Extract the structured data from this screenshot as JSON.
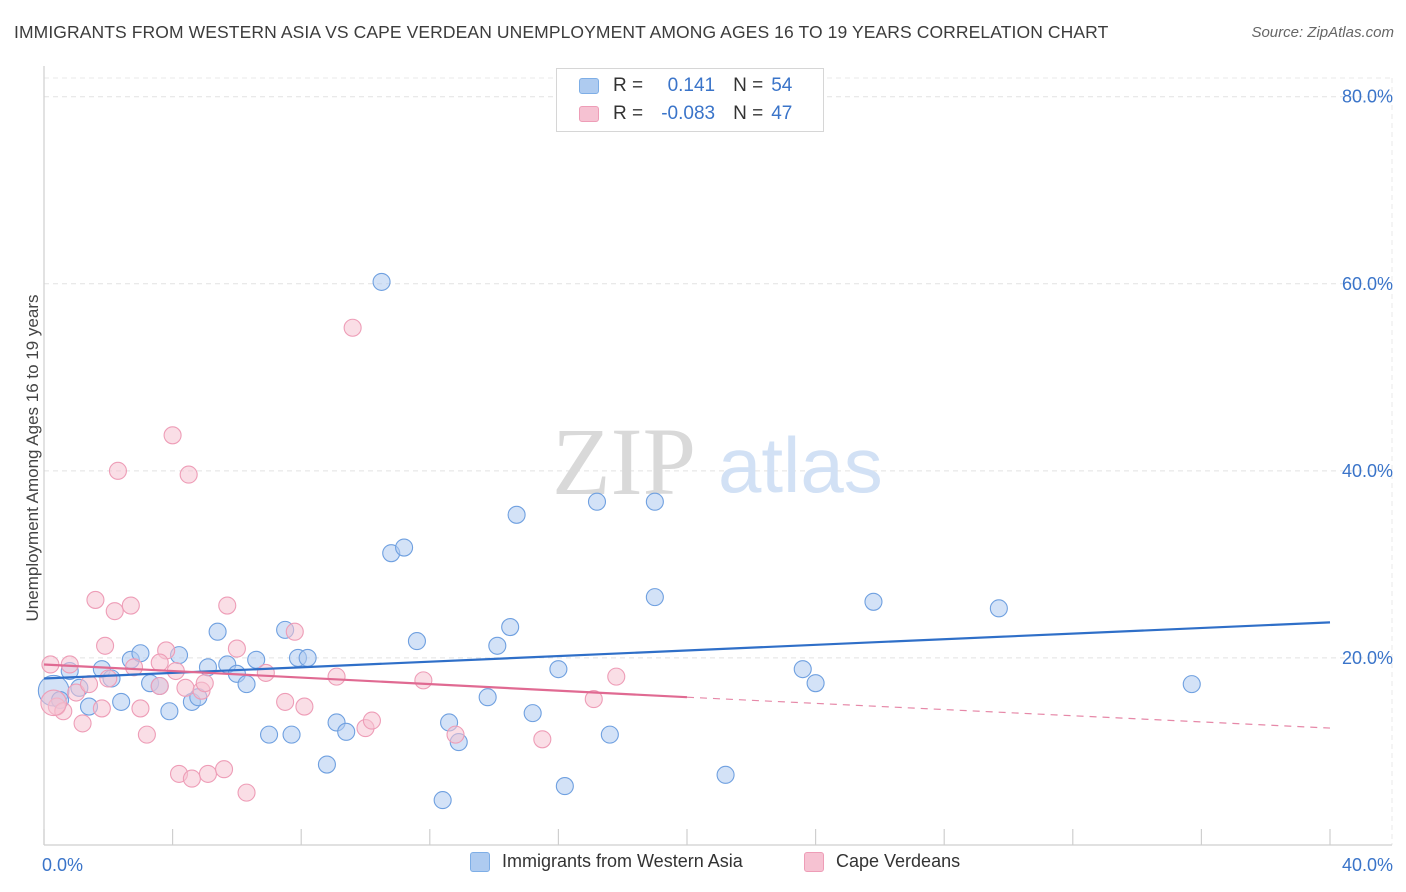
{
  "title": "IMMIGRANTS FROM WESTERN ASIA VS CAPE VERDEAN UNEMPLOYMENT AMONG AGES 16 TO 19 YEARS CORRELATION CHART",
  "source": "Source: ZipAtlas.com",
  "watermark": {
    "part1": "ZIP",
    "part2": "atlas"
  },
  "legend": {
    "rows": [
      {
        "r_label": "R =",
        "r_value": "0.141",
        "n_label": "N =",
        "n_value": "54",
        "color": "#aecbf0",
        "border": "#7eaee6"
      },
      {
        "r_label": "R =",
        "r_value": "-0.083",
        "n_label": "N =",
        "n_value": "47",
        "color": "#f6c2d2",
        "border": "#ee9db7"
      }
    ]
  },
  "bottom_legend": [
    {
      "label": "Immigrants from Western Asia",
      "color": "#aecbf0",
      "border": "#7eaee6"
    },
    {
      "label": "Cape Verdeans",
      "color": "#f6c2d2",
      "border": "#ee9db7"
    }
  ],
  "chart_data": {
    "type": "scatter",
    "title": "IMMIGRANTS FROM WESTERN ASIA VS CAPE VERDEAN UNEMPLOYMENT AMONG AGES 16 TO 19 YEARS CORRELATION CHART",
    "xlabel": "",
    "ylabel": "Unemployment Among Ages 16 to 19 years",
    "xlim": [
      0,
      40
    ],
    "ylim": [
      0,
      82
    ],
    "x_tick_labels": [
      "0.0%",
      "40.0%"
    ],
    "y_ticks": [
      {
        "value": 20,
        "label": "20.0%"
      },
      {
        "value": 40,
        "label": "40.0%"
      },
      {
        "value": 60,
        "label": "60.0%"
      },
      {
        "value": 80,
        "label": "80.0%"
      }
    ],
    "grid": true,
    "legend_position": "top-center",
    "series": [
      {
        "name": "Immigrants from Western Asia",
        "color": "#6fa0e0",
        "fill": "#aecbf0",
        "trend": {
          "x": [
            0,
            40
          ],
          "y": [
            17.8,
            23.8
          ],
          "style": "solid",
          "color": "#2f6fc8"
        },
        "points": [
          [
            0.3,
            16.5,
            1.8
          ],
          [
            0.5,
            15.5,
            1
          ],
          [
            0.8,
            18.6,
            1
          ],
          [
            1.1,
            16.8,
            1
          ],
          [
            1.4,
            14.8,
            1
          ],
          [
            1.8,
            18.8,
            1
          ],
          [
            2.1,
            17.8,
            1
          ],
          [
            2.4,
            15.3,
            1
          ],
          [
            2.7,
            19.8,
            1
          ],
          [
            3.0,
            20.5,
            1
          ],
          [
            3.3,
            17.3,
            1
          ],
          [
            3.6,
            17.0,
            1
          ],
          [
            3.9,
            14.3,
            1
          ],
          [
            4.2,
            20.3,
            1
          ],
          [
            4.6,
            15.3,
            1
          ],
          [
            4.8,
            15.8,
            1
          ],
          [
            5.1,
            19.0,
            1
          ],
          [
            5.4,
            22.8,
            1
          ],
          [
            5.7,
            19.3,
            1
          ],
          [
            6.0,
            18.3,
            1
          ],
          [
            6.3,
            17.2,
            1
          ],
          [
            6.6,
            19.8,
            1
          ],
          [
            7.0,
            11.8,
            1
          ],
          [
            7.5,
            23.0,
            1
          ],
          [
            7.7,
            11.8,
            1
          ],
          [
            7.9,
            20.0,
            1
          ],
          [
            8.2,
            20.0,
            1
          ],
          [
            8.8,
            8.6,
            1
          ],
          [
            9.1,
            13.1,
            1
          ],
          [
            9.4,
            12.1,
            1
          ],
          [
            10.5,
            60.2,
            1
          ],
          [
            10.8,
            31.2,
            1
          ],
          [
            11.2,
            31.8,
            1
          ],
          [
            11.6,
            21.8,
            1
          ],
          [
            12.4,
            4.8,
            1
          ],
          [
            12.6,
            13.1,
            1
          ],
          [
            12.9,
            11.0,
            1
          ],
          [
            13.8,
            15.8,
            1
          ],
          [
            14.1,
            21.3,
            1
          ],
          [
            14.5,
            23.3,
            1
          ],
          [
            14.7,
            35.3,
            1
          ],
          [
            15.2,
            14.1,
            1
          ],
          [
            16.0,
            18.8,
            1
          ],
          [
            16.2,
            6.3,
            1
          ],
          [
            17.2,
            36.7,
            1
          ],
          [
            17.6,
            11.8,
            1
          ],
          [
            19.0,
            36.7,
            1
          ],
          [
            19.0,
            26.5,
            1
          ],
          [
            21.2,
            7.5,
            1
          ],
          [
            23.6,
            18.8,
            1
          ],
          [
            24.0,
            17.3,
            1
          ],
          [
            25.8,
            26.0,
            1
          ],
          [
            29.7,
            25.3,
            1
          ],
          [
            35.7,
            17.2,
            1
          ]
        ]
      },
      {
        "name": "Cape Verdeans",
        "color": "#ee9db7",
        "fill": "#f6c2d2",
        "trend": {
          "x": [
            0,
            20
          ],
          "y": [
            19.3,
            15.8
          ],
          "dashed_to": [
            40,
            12.5
          ],
          "style": "solid",
          "color": "#e06a92"
        },
        "points": [
          [
            0.2,
            19.3,
            1
          ],
          [
            0.4,
            14.8,
            1
          ],
          [
            0.6,
            14.3,
            1
          ],
          [
            0.8,
            19.3,
            1
          ],
          [
            1.0,
            16.3,
            1
          ],
          [
            1.2,
            13.0,
            1
          ],
          [
            1.4,
            17.2,
            1
          ],
          [
            1.6,
            26.2,
            1
          ],
          [
            1.8,
            14.6,
            1
          ],
          [
            1.9,
            21.3,
            1
          ],
          [
            2.2,
            25.0,
            1
          ],
          [
            2.3,
            40.0,
            1
          ],
          [
            2.7,
            25.6,
            1
          ],
          [
            2.8,
            19.0,
            1
          ],
          [
            3.0,
            14.6,
            1
          ],
          [
            3.2,
            11.8,
            1
          ],
          [
            3.6,
            17.0,
            1
          ],
          [
            3.8,
            20.8,
            1
          ],
          [
            4.0,
            43.8,
            1
          ],
          [
            4.1,
            18.6,
            1
          ],
          [
            4.2,
            7.6,
            1
          ],
          [
            4.4,
            16.8,
            1
          ],
          [
            4.5,
            39.6,
            1
          ],
          [
            4.6,
            7.1,
            1
          ],
          [
            4.9,
            16.5,
            1
          ],
          [
            5.0,
            17.3,
            1
          ],
          [
            5.1,
            7.6,
            1
          ],
          [
            5.6,
            8.1,
            1
          ],
          [
            5.7,
            25.6,
            1
          ],
          [
            6.0,
            21.0,
            1
          ],
          [
            6.3,
            5.6,
            1
          ],
          [
            7.5,
            15.3,
            1
          ],
          [
            7.8,
            22.8,
            1
          ],
          [
            8.1,
            14.8,
            1
          ],
          [
            9.1,
            18.0,
            1
          ],
          [
            9.6,
            55.3,
            1
          ],
          [
            10.0,
            12.5,
            1
          ],
          [
            10.2,
            13.3,
            1
          ],
          [
            11.8,
            17.6,
            1
          ],
          [
            12.8,
            11.8,
            1
          ],
          [
            15.5,
            11.3,
            1
          ],
          [
            17.1,
            15.6,
            1
          ],
          [
            17.8,
            18.0,
            1
          ],
          [
            0.3,
            15.2,
            1.5
          ],
          [
            2.0,
            17.8,
            1
          ],
          [
            3.6,
            19.5,
            1
          ],
          [
            6.9,
            18.4,
            1
          ]
        ]
      }
    ]
  }
}
